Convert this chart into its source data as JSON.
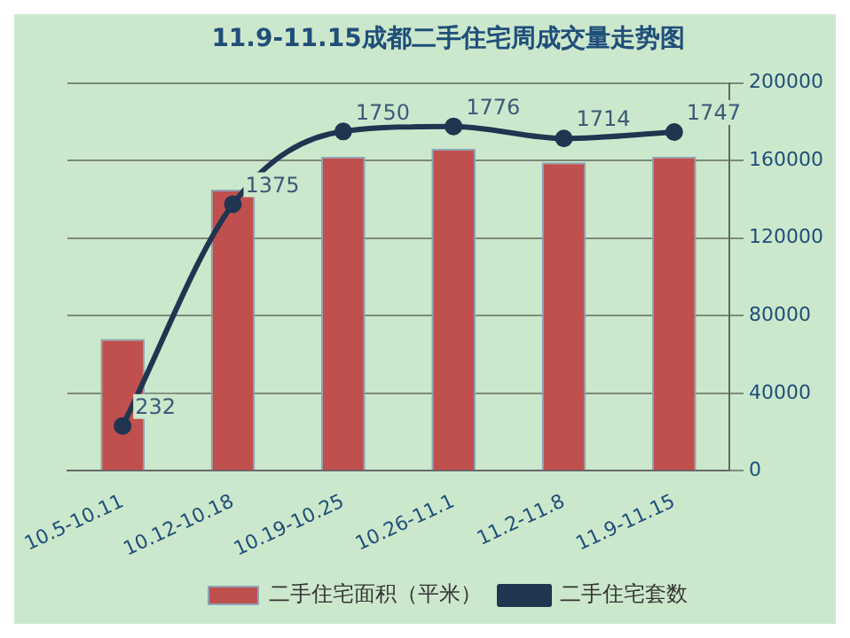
{
  "chart_data": {
    "type": "bar",
    "title": "11.9-11.15成都二手住宅周成交量走势图",
    "categories": [
      "10.5-10.11",
      "10.12-10.18",
      "10.19-10.25",
      "10.26-11.1",
      "11.2-11.8",
      "11.9-11.15"
    ],
    "series": [
      {
        "name": "二手住宅面积（平米）",
        "axis": "y2",
        "color": "#c0504d",
        "values": [
          68000,
          145000,
          162000,
          166000,
          159000,
          162000
        ]
      },
      {
        "name": "二手住宅套数",
        "type": "line",
        "axis": "y",
        "color": "#1f3550",
        "marker": "circle",
        "values": [
          232,
          1375,
          1750,
          1776,
          1714,
          1747
        ],
        "value_labels": [
          "232",
          "1375",
          "1750",
          "1776",
          "1714",
          "1747"
        ]
      }
    ],
    "y2lim": [
      0,
      200000
    ],
    "y2ticks": [
      0,
      40000,
      80000,
      120000,
      160000,
      200000
    ],
    "grid": "y",
    "legend": "bottom"
  }
}
